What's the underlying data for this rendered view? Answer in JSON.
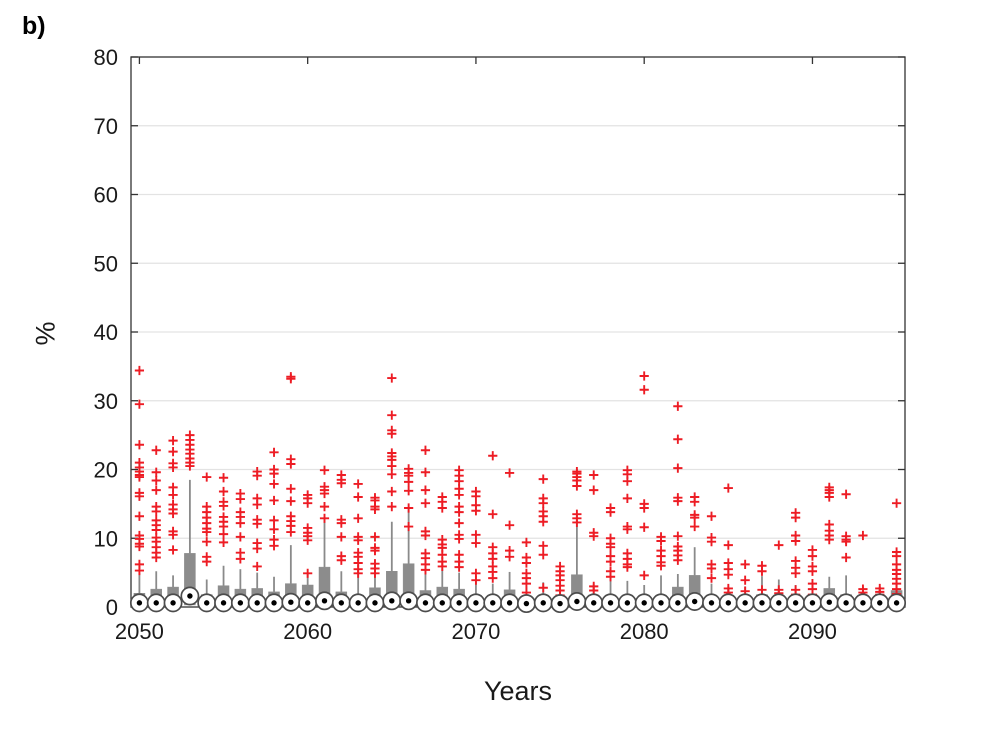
{
  "chart_data": {
    "type": "boxplot",
    "panel_label": "b)",
    "xlabel": "Years",
    "ylabel": "%",
    "ylim": [
      0,
      80
    ],
    "yticks": [
      0,
      10,
      20,
      30,
      40,
      50,
      60,
      70,
      80
    ],
    "xticks": [
      2050,
      2060,
      2070,
      2080,
      2090
    ],
    "x_range": [
      2050,
      2095
    ],
    "grid": "horizontal",
    "legend": "none",
    "marker_style": "red plus outliers, gray boxes, white circle with black dot at median",
    "colors": {
      "outlier_red": "#ed1c24",
      "box_gray": "#8c8c8c",
      "whisker_gray": "#8a8a8a",
      "frame": "#333333",
      "grid": "#e3e3e3",
      "tick_text": "#1a1a1a",
      "median_ring": "#4c4c4c",
      "median_dot": "#000000",
      "background": "#ffffff"
    },
    "series": [
      {
        "year": 2050,
        "q1": 0.1,
        "median": 0.6,
        "q3": 2.0,
        "whisker_high": 5.0,
        "outliers": [
          34.4,
          29.5,
          23.6,
          21.0,
          20.3,
          19.7,
          19.2,
          18.9,
          16.6,
          16.1,
          13.2,
          10.4,
          9.9,
          9.2,
          8.8,
          6.2,
          5.3
        ]
      },
      {
        "year": 2051,
        "q1": 0.1,
        "median": 0.6,
        "q3": 2.6,
        "whisker_high": 5.2,
        "outliers": [
          22.8,
          19.6,
          18.4,
          17.0,
          14.6,
          13.9,
          12.6,
          11.9,
          11.2,
          10.1,
          9.5,
          8.7,
          7.9,
          7.2
        ]
      },
      {
        "year": 2052,
        "q1": 0.1,
        "median": 0.6,
        "q3": 2.9,
        "whisker_high": 4.6,
        "outliers": [
          24.2,
          22.6,
          20.9,
          20.3,
          17.4,
          16.3,
          14.9,
          14.2,
          13.6,
          11.0,
          10.5,
          8.3
        ]
      },
      {
        "year": 2053,
        "q1": 0.3,
        "median": 1.6,
        "q3": 7.8,
        "whisker_high": 18.5,
        "outliers": [
          25.0,
          24.3,
          23.6,
          22.9,
          22.3,
          21.6,
          21.0,
          20.5
        ]
      },
      {
        "year": 2054,
        "q1": 0.1,
        "median": 0.6,
        "q3": 1.8,
        "whisker_high": 4.0,
        "outliers": [
          18.9,
          14.6,
          13.8,
          13.0,
          12.2,
          11.4,
          10.9,
          9.5,
          7.3,
          6.6
        ]
      },
      {
        "year": 2055,
        "q1": 0.1,
        "median": 0.6,
        "q3": 3.1,
        "whisker_high": 6.0,
        "outliers": [
          18.8,
          16.8,
          15.3,
          14.7,
          13.1,
          12.4,
          11.7,
          10.6,
          9.4
        ]
      },
      {
        "year": 2056,
        "q1": 0.1,
        "median": 0.6,
        "q3": 2.6,
        "whisker_high": 5.5,
        "outliers": [
          16.5,
          15.7,
          13.8,
          13.1,
          12.2,
          10.2,
          7.9,
          7.0
        ]
      },
      {
        "year": 2057,
        "q1": 0.1,
        "median": 0.6,
        "q3": 2.7,
        "whisker_high": 5.0,
        "outliers": [
          19.7,
          19.1,
          15.8,
          14.9,
          12.7,
          12.1,
          9.3,
          8.5,
          5.9
        ]
      },
      {
        "year": 2058,
        "q1": 0.1,
        "median": 0.6,
        "q3": 2.2,
        "whisker_high": 4.4,
        "outliers": [
          22.5,
          20.0,
          19.4,
          17.9,
          15.5,
          12.6,
          11.3,
          9.8,
          8.9
        ]
      },
      {
        "year": 2059,
        "q1": 0.1,
        "median": 0.7,
        "q3": 3.4,
        "whisker_high": 9.0,
        "outliers": [
          33.5,
          33.2,
          21.5,
          20.8,
          17.2,
          15.4,
          13.2,
          12.5,
          11.8,
          10.9
        ]
      },
      {
        "year": 2060,
        "q1": 0.1,
        "median": 0.6,
        "q3": 3.2,
        "whisker_high": 4.9,
        "outliers": [
          16.3,
          15.8,
          15.1,
          11.5,
          10.8,
          10.3,
          9.7,
          4.9
        ]
      },
      {
        "year": 2061,
        "q1": 0.2,
        "median": 0.9,
        "q3": 5.8,
        "whisker_high": 13.0,
        "outliers": [
          19.9,
          17.5,
          17.0,
          16.5,
          14.6,
          12.9
        ]
      },
      {
        "year": 2062,
        "q1": 0.1,
        "median": 0.6,
        "q3": 2.2,
        "whisker_high": 5.2,
        "outliers": [
          19.2,
          18.5,
          18.0,
          12.7,
          12.2,
          10.2,
          7.4,
          6.8
        ]
      },
      {
        "year": 2063,
        "q1": 0.1,
        "median": 0.6,
        "q3": 1.7,
        "whisker_high": 5.0,
        "outliers": [
          17.9,
          16.0,
          12.9,
          10.2,
          9.7,
          7.9,
          7.3,
          6.4,
          5.5,
          4.9
        ]
      },
      {
        "year": 2064,
        "q1": 0.1,
        "median": 0.6,
        "q3": 2.8,
        "whisker_high": 6.2,
        "outliers": [
          15.9,
          15.5,
          14.6,
          14.2,
          10.2,
          8.6,
          8.2,
          6.3,
          5.6,
          4.9
        ]
      },
      {
        "year": 2065,
        "q1": 0.2,
        "median": 0.9,
        "q3": 5.2,
        "whisker_high": 12.4,
        "outliers": [
          33.3,
          27.9,
          25.7,
          25.2,
          22.4,
          21.9,
          21.4,
          20.5,
          19.3,
          16.8,
          14.6
        ]
      },
      {
        "year": 2066,
        "q1": 0.2,
        "median": 0.9,
        "q3": 6.3,
        "whisker_high": 14.2,
        "outliers": [
          20.1,
          19.5,
          19.1,
          18.2,
          16.9,
          14.4,
          11.7
        ]
      },
      {
        "year": 2067,
        "q1": 0.1,
        "median": 0.6,
        "q3": 2.4,
        "whisker_high": 5.3,
        "outliers": [
          22.8,
          19.6,
          17.0,
          15.1,
          11.0,
          10.4,
          7.8,
          7.1,
          6.2,
          5.4
        ]
      },
      {
        "year": 2068,
        "q1": 0.1,
        "median": 0.6,
        "q3": 2.9,
        "whisker_high": 5.6,
        "outliers": [
          16.0,
          15.3,
          14.4,
          9.8,
          9.1,
          8.6,
          7.6,
          6.6,
          5.9
        ]
      },
      {
        "year": 2069,
        "q1": 0.1,
        "median": 0.6,
        "q3": 2.6,
        "whisker_high": 5.0,
        "outliers": [
          19.9,
          19.1,
          18.3,
          17.2,
          16.3,
          14.6,
          13.8,
          12.2,
          10.5,
          9.9,
          7.6,
          6.6,
          5.8
        ]
      },
      {
        "year": 2070,
        "q1": 0.1,
        "median": 0.6,
        "q3": 1.7,
        "whisker_high": 4.2,
        "outliers": [
          16.8,
          16.1,
          14.8,
          14.0,
          10.5,
          9.3,
          4.9,
          3.9
        ]
      },
      {
        "year": 2071,
        "q1": 0.1,
        "median": 0.6,
        "q3": 1.5,
        "whisker_high": 3.4,
        "outliers": [
          22.0,
          13.5,
          8.7,
          7.8,
          7.0,
          5.9,
          5.1,
          4.2
        ]
      },
      {
        "year": 2072,
        "q1": 0.1,
        "median": 0.6,
        "q3": 2.5,
        "whisker_high": 5.1,
        "outliers": [
          19.5,
          11.9,
          8.2,
          7.3
        ]
      },
      {
        "year": 2073,
        "q1": 0.1,
        "median": 0.5,
        "q3": 1.0,
        "whisker_high": 3.0,
        "outliers": [
          9.4,
          7.2,
          6.4,
          4.9,
          4.2,
          3.4,
          2.1
        ]
      },
      {
        "year": 2074,
        "q1": 0.1,
        "median": 0.6,
        "q3": 1.4,
        "whisker_high": 3.6,
        "outliers": [
          18.6,
          15.8,
          15.1,
          13.9,
          13.2,
          12.4,
          8.9,
          7.6,
          2.8
        ]
      },
      {
        "year": 2075,
        "q1": 0.1,
        "median": 0.5,
        "q3": 1.3,
        "whisker_high": 3.2,
        "outliers": [
          5.9,
          5.2,
          4.6,
          3.9,
          3.1,
          2.4,
          1.7
        ]
      },
      {
        "year": 2076,
        "q1": 0.2,
        "median": 0.8,
        "q3": 4.7,
        "whisker_high": 12.7,
        "outliers": [
          19.7,
          19.4,
          18.9,
          18.4,
          17.6,
          13.5,
          12.9,
          12.3
        ]
      },
      {
        "year": 2077,
        "q1": 0.1,
        "median": 0.6,
        "q3": 1.5,
        "whisker_high": 3.4,
        "outliers": [
          19.2,
          17.0,
          10.8,
          10.3,
          3.0,
          2.4
        ]
      },
      {
        "year": 2078,
        "q1": 0.1,
        "median": 0.6,
        "q3": 1.6,
        "whisker_high": 5.6,
        "outliers": [
          14.4,
          13.8,
          10.0,
          9.2,
          8.7,
          7.4,
          6.6,
          5.2,
          4.4
        ]
      },
      {
        "year": 2079,
        "q1": 0.1,
        "median": 0.6,
        "q3": 1.5,
        "whisker_high": 3.8,
        "outliers": [
          19.9,
          19.3,
          18.3,
          15.8,
          11.7,
          11.3,
          7.8,
          7.0,
          6.2,
          5.8
        ]
      },
      {
        "year": 2080,
        "q1": 0.1,
        "median": 0.6,
        "q3": 1.3,
        "whisker_high": 3.2,
        "outliers": [
          33.6,
          31.6,
          15.0,
          14.4,
          11.6,
          4.6
        ]
      },
      {
        "year": 2081,
        "q1": 0.1,
        "median": 0.6,
        "q3": 1.3,
        "whisker_high": 4.6,
        "outliers": [
          10.2,
          9.6,
          8.2,
          7.4,
          6.5,
          6.0
        ]
      },
      {
        "year": 2082,
        "q1": 0.1,
        "median": 0.6,
        "q3": 2.9,
        "whisker_high": 4.8,
        "outliers": [
          29.2,
          24.4,
          20.2,
          15.9,
          15.4,
          10.3,
          8.8,
          8.2,
          7.5,
          6.8
        ]
      },
      {
        "year": 2083,
        "q1": 0.2,
        "median": 0.8,
        "q3": 4.6,
        "whisker_high": 8.7,
        "outliers": [
          16.0,
          15.3,
          13.4,
          13.0,
          11.7
        ]
      },
      {
        "year": 2084,
        "q1": 0.1,
        "median": 0.6,
        "q3": 1.3,
        "whisker_high": 3.4,
        "outliers": [
          13.2,
          10.1,
          9.5,
          6.2,
          5.6,
          4.2
        ]
      },
      {
        "year": 2085,
        "q1": 0.1,
        "median": 0.6,
        "q3": 1.4,
        "whisker_high": 3.0,
        "outliers": [
          17.3,
          9.0,
          6.4,
          5.5,
          4.7,
          2.7,
          2.1
        ]
      },
      {
        "year": 2086,
        "q1": 0.1,
        "median": 0.6,
        "q3": 1.3,
        "whisker_high": 3.0,
        "outliers": [
          6.2,
          3.9,
          2.3
        ]
      },
      {
        "year": 2087,
        "q1": 0.1,
        "median": 0.6,
        "q3": 1.8,
        "whisker_high": 4.5,
        "outliers": [
          6.0,
          5.2,
          2.5
        ]
      },
      {
        "year": 2088,
        "q1": 0.1,
        "median": 0.6,
        "q3": 1.6,
        "whisker_high": 4.0,
        "outliers": [
          9.0,
          2.5,
          2.0,
          1.5,
          1.0
        ]
      },
      {
        "year": 2089,
        "q1": 0.1,
        "median": 0.6,
        "q3": 1.4,
        "whisker_high": 3.2,
        "outliers": [
          13.7,
          13.0,
          10.4,
          9.6,
          6.7,
          5.7,
          4.9,
          2.5,
          1.8
        ]
      },
      {
        "year": 2090,
        "q1": 0.1,
        "median": 0.6,
        "q3": 1.3,
        "whisker_high": 3.0,
        "outliers": [
          8.3,
          7.4,
          5.9,
          5.2,
          3.4,
          2.6,
          1.8
        ]
      },
      {
        "year": 2091,
        "q1": 0.1,
        "median": 0.7,
        "q3": 2.7,
        "whisker_high": 4.4,
        "outliers": [
          17.4,
          17.0,
          16.6,
          16.0,
          12.0,
          11.1,
          10.4,
          9.8
        ]
      },
      {
        "year": 2092,
        "q1": 0.1,
        "median": 0.6,
        "q3": 1.8,
        "whisker_high": 4.6,
        "outliers": [
          16.4,
          10.3,
          9.8,
          9.5,
          7.2
        ]
      },
      {
        "year": 2093,
        "q1": 0.1,
        "median": 0.6,
        "q3": 1.3,
        "whisker_high": 3.0,
        "outliers": [
          10.4,
          2.6,
          2.1,
          1.6
        ]
      },
      {
        "year": 2094,
        "q1": 0.1,
        "median": 0.6,
        "q3": 1.4,
        "whisker_high": 3.0,
        "outliers": [
          2.7,
          2.2,
          1.8
        ]
      },
      {
        "year": 2095,
        "q1": 0.1,
        "median": 0.6,
        "q3": 2.4,
        "whisker_high": 5.0,
        "outliers": [
          15.1,
          8.0,
          7.4,
          6.2,
          5.4,
          4.8,
          4.1,
          3.4,
          2.6,
          1.9
        ]
      }
    ]
  }
}
